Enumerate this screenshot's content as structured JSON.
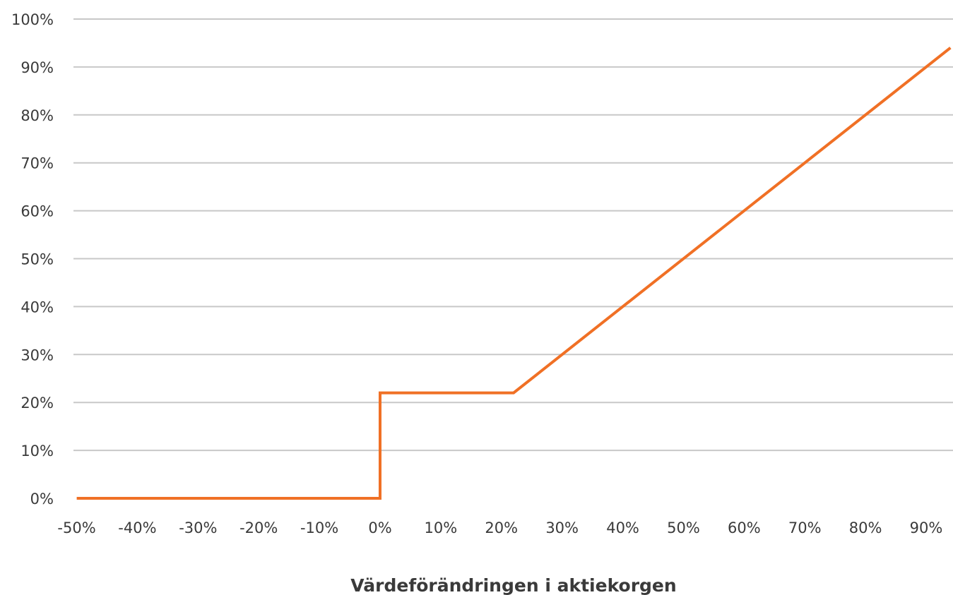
{
  "chart_data": {
    "type": "line",
    "xlabel": "Värdeförändringen i aktiekorgen",
    "ylabel": "",
    "x_ticks": [
      -50,
      -40,
      -30,
      -20,
      -10,
      0,
      10,
      20,
      30,
      40,
      50,
      60,
      70,
      80,
      90
    ],
    "x_tick_labels": [
      "-50%",
      "-40%",
      "-30%",
      "-20%",
      "-10%",
      "0%",
      "10%",
      "20%",
      "30%",
      "40%",
      "50%",
      "60%",
      "70%",
      "80%",
      "90%"
    ],
    "y_ticks": [
      0,
      10,
      20,
      30,
      40,
      50,
      60,
      70,
      80,
      90,
      100
    ],
    "y_tick_labels": [
      "0%",
      "10%",
      "20%",
      "30%",
      "40%",
      "50%",
      "60%",
      "70%",
      "80%",
      "90%",
      "100%"
    ],
    "xlim": [
      -50,
      94
    ],
    "ylim": [
      0,
      100
    ],
    "grid": "horizontal",
    "series": [
      {
        "color": "#f07025",
        "points": [
          {
            "x": -50,
            "y": 0
          },
          {
            "x": 0,
            "y": 0
          },
          {
            "x": 0,
            "y": 22
          },
          {
            "x": 22,
            "y": 22
          },
          {
            "x": 94,
            "y": 94
          }
        ]
      }
    ]
  }
}
